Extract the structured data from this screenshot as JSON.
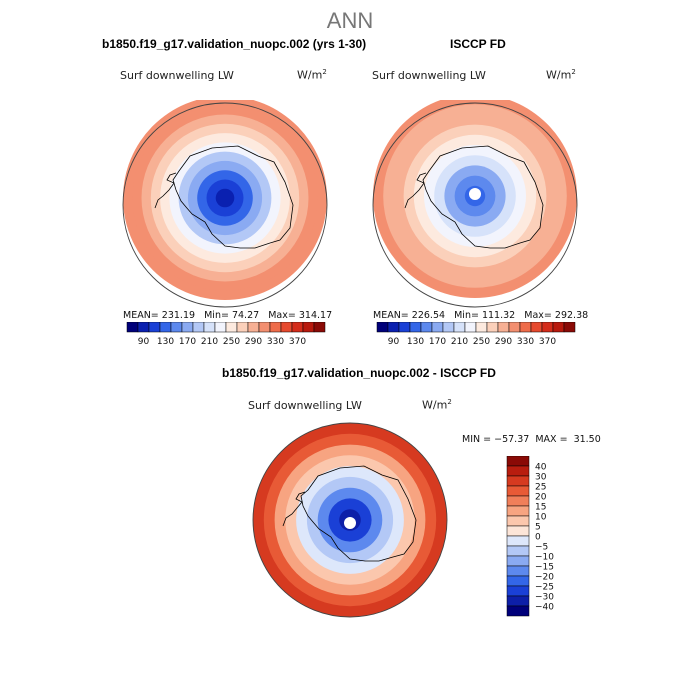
{
  "main_title": "ANN",
  "colors": {
    "palette_18": [
      "#00007a",
      "#0a20b0",
      "#1a40d6",
      "#3366e8",
      "#5d89ee",
      "#8aaaf2",
      "#b3c8f6",
      "#d6e2fa",
      "#f2f4fd",
      "#fdeadf",
      "#fbd0ba",
      "#f7b094",
      "#f38f70",
      "#ee6c4a",
      "#e64a2e",
      "#d42c1a",
      "#b8190d",
      "#8a0a06"
    ],
    "palette_diff": [
      "#00007a",
      "#0d1fa8",
      "#1a40d6",
      "#3366e8",
      "#5d89ee",
      "#8aaaf2",
      "#b3c8f6",
      "#dde7fb",
      "#fce5d8",
      "#fbc7ad",
      "#f7a481",
      "#f07f5a",
      "#e85a36",
      "#d63a20",
      "#b81d0f",
      "#8a0a06"
    ],
    "land_outline": "#000000"
  },
  "panels": [
    {
      "title": "b1850.f19_g17.validation_nuopc.002 (yrs 1-30)",
      "variable": "Surf downwelling LW",
      "units": "W/m",
      "units_sup": "2",
      "stats": {
        "mean_label": "MEAN=",
        "mean": "231.19",
        "min_label": "Min=",
        "min": "74.27",
        "max_label": "Max=",
        "max": "314.17"
      }
    },
    {
      "title": "ISCCP FD",
      "variable": "Surf downwelling LW",
      "units": "W/m",
      "units_sup": "2",
      "stats": {
        "mean_label": "MEAN=",
        "mean": "226.54",
        "min_label": "Min=",
        "min": "111.32",
        "max_label": "Max=",
        "max": "292.38"
      }
    },
    {
      "title": "b1850.f19_g17.validation_nuopc.002 - ISCCP FD",
      "variable": "Surf downwelling LW",
      "units": "W/m",
      "units_sup": "2",
      "stats": {
        "min_label": "MIN =",
        "min": "−57.37",
        "max_label": "MAX =",
        "max": "31.50"
      }
    }
  ],
  "chart_data": [
    {
      "type": "heatmap",
      "projection": "south-polar stereographic",
      "title": "b1850.f19_g17.validation_nuopc.002 (yrs 1-30)",
      "variable": "Surf downwelling LW",
      "units": "W/m2",
      "mean": 231.19,
      "min": 74.27,
      "max": 314.17,
      "colorbar_ticks": [
        "90",
        "130",
        "170",
        "210",
        "250",
        "290",
        "330",
        "370"
      ],
      "colorbar_range": [
        70,
        390
      ],
      "contour_rings": [
        {
          "value": 95
        },
        {
          "value": 115
        },
        {
          "value": 140
        },
        {
          "value": 165
        },
        {
          "value": 190
        },
        {
          "value": 215
        },
        {
          "value": 240
        },
        {
          "value": 258
        },
        {
          "value": 272
        },
        {
          "value": 285
        },
        {
          "value": 298
        }
      ]
    },
    {
      "type": "heatmap",
      "projection": "south-polar stereographic",
      "title": "ISCCP FD",
      "variable": "Surf downwelling LW",
      "units": "W/m2",
      "mean": 226.54,
      "min": 111.32,
      "max": 292.38,
      "colorbar_ticks": [
        "90",
        "130",
        "170",
        "210",
        "250",
        "290",
        "330",
        "370"
      ],
      "colorbar_range": [
        70,
        390
      ],
      "missing_pole": true,
      "contour_rings": [
        {
          "value": 125
        },
        {
          "value": 150
        },
        {
          "value": 175
        },
        {
          "value": 200
        },
        {
          "value": 222
        },
        {
          "value": 240
        },
        {
          "value": 255
        },
        {
          "value": 268
        },
        {
          "value": 280
        },
        {
          "value": 292
        }
      ]
    },
    {
      "type": "heatmap",
      "projection": "south-polar stereographic",
      "title": "b1850.f19_g17.validation_nuopc.002 - ISCCP FD",
      "variable": "Surf downwelling LW",
      "units": "W/m2",
      "min": -57.37,
      "max": 31.5,
      "colorbar_ticks": [
        "40",
        "30",
        "25",
        "20",
        "15",
        "10",
        "5",
        "0",
        "−5",
        "−10",
        "−15",
        "−20",
        "−25",
        "−30",
        "−40"
      ],
      "missing_pole": true,
      "contour_rings": [
        {
          "value": -40
        },
        {
          "value": -28
        },
        {
          "value": -20
        },
        {
          "value": -10
        },
        {
          "value": -2
        },
        {
          "value": 8
        },
        {
          "value": 14
        },
        {
          "value": 20
        },
        {
          "value": 26
        }
      ]
    }
  ]
}
